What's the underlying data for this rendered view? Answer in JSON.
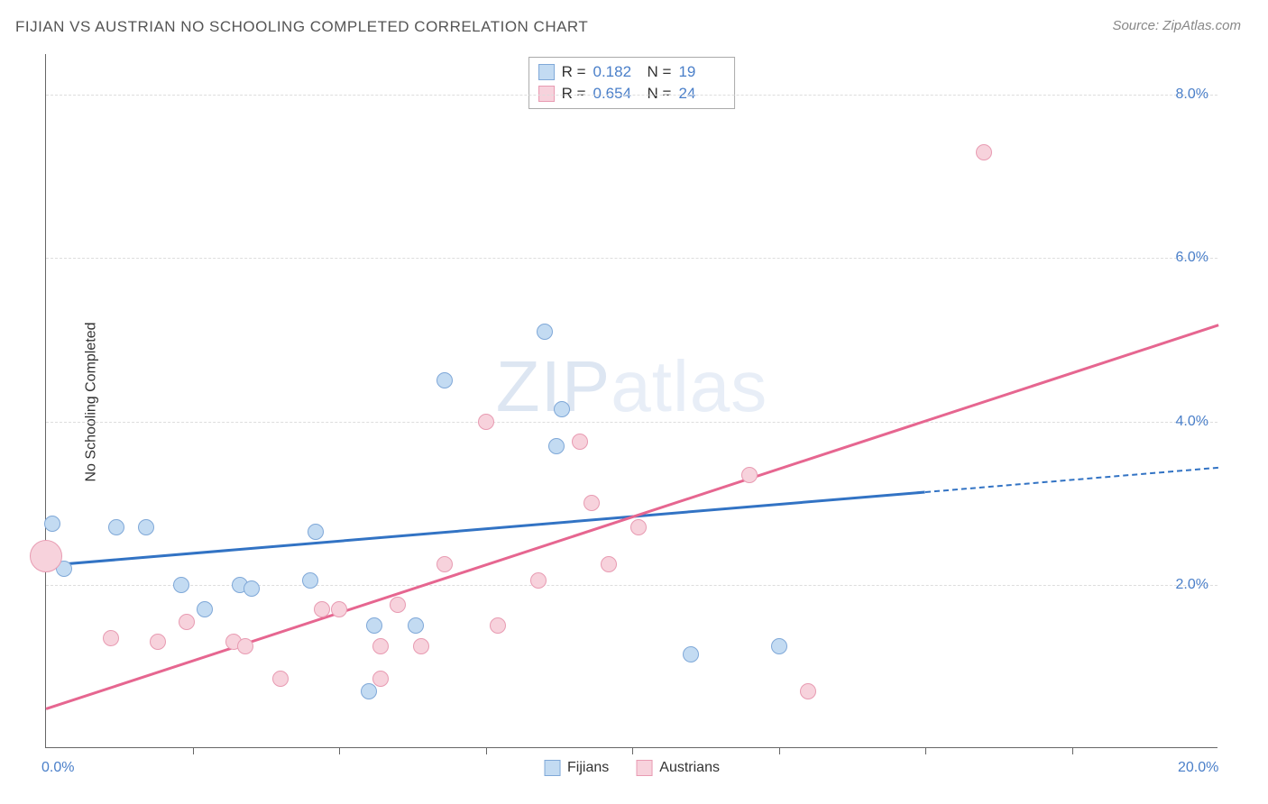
{
  "title": "FIJIAN VS AUSTRIAN NO SCHOOLING COMPLETED CORRELATION CHART",
  "source": "Source: ZipAtlas.com",
  "y_axis_label": "No Schooling Completed",
  "watermark": {
    "bold": "ZIP",
    "light": "atlas"
  },
  "chart": {
    "type": "scatter",
    "xlim": [
      0,
      20
    ],
    "ylim": [
      0,
      8.5
    ],
    "x_tick_labels": [
      {
        "pos": 0,
        "label": "0.0%"
      },
      {
        "pos": 20,
        "label": "20.0%"
      }
    ],
    "x_tick_positions": [
      2.5,
      5,
      7.5,
      10,
      12.5,
      15,
      17.5
    ],
    "y_ticks": [
      {
        "pos": 2,
        "label": "2.0%"
      },
      {
        "pos": 4,
        "label": "4.0%"
      },
      {
        "pos": 6,
        "label": "6.0%"
      },
      {
        "pos": 8,
        "label": "8.0%"
      }
    ],
    "background_color": "#ffffff",
    "grid_color": "#dddddd",
    "series": [
      {
        "name": "Fijians",
        "fill": "#c3dbf2",
        "stroke": "#7fa8d8",
        "trend_color": "#3273c4",
        "R": "0.182",
        "N": "19",
        "radius": 9,
        "trend": {
          "x1": 0,
          "y1": 2.25,
          "x2": 15,
          "y2": 3.15,
          "dashed_to_x": 20,
          "dashed_to_y": 3.45
        },
        "points": [
          {
            "x": 0.1,
            "y": 2.75
          },
          {
            "x": 0.3,
            "y": 2.2
          },
          {
            "x": 1.2,
            "y": 2.7
          },
          {
            "x": 1.7,
            "y": 2.7
          },
          {
            "x": 2.3,
            "y": 2.0
          },
          {
            "x": 2.7,
            "y": 1.7
          },
          {
            "x": 3.3,
            "y": 2.0
          },
          {
            "x": 3.5,
            "y": 1.95
          },
          {
            "x": 4.5,
            "y": 2.05
          },
          {
            "x": 4.6,
            "y": 2.65
          },
          {
            "x": 5.5,
            "y": 0.7
          },
          {
            "x": 5.6,
            "y": 1.5
          },
          {
            "x": 6.3,
            "y": 1.5
          },
          {
            "x": 6.8,
            "y": 4.5
          },
          {
            "x": 8.5,
            "y": 5.1
          },
          {
            "x": 8.7,
            "y": 3.7
          },
          {
            "x": 8.8,
            "y": 4.15
          },
          {
            "x": 11.0,
            "y": 1.15
          },
          {
            "x": 12.5,
            "y": 1.25
          }
        ]
      },
      {
        "name": "Austrians",
        "fill": "#f7d2dc",
        "stroke": "#e89bb2",
        "trend_color": "#e66690",
        "R": "0.654",
        "N": "24",
        "radius": 9,
        "trend": {
          "x1": 0,
          "y1": 0.5,
          "x2": 20,
          "y2": 5.2
        },
        "points": [
          {
            "x": 0.0,
            "y": 2.35,
            "r": 18
          },
          {
            "x": 1.1,
            "y": 1.35
          },
          {
            "x": 1.9,
            "y": 1.3
          },
          {
            "x": 2.4,
            "y": 1.55
          },
          {
            "x": 3.2,
            "y": 1.3
          },
          {
            "x": 3.4,
            "y": 1.25
          },
          {
            "x": 4.0,
            "y": 0.85
          },
          {
            "x": 4.7,
            "y": 1.7
          },
          {
            "x": 5.0,
            "y": 1.7
          },
          {
            "x": 5.7,
            "y": 0.85
          },
          {
            "x": 5.7,
            "y": 1.25
          },
          {
            "x": 6.0,
            "y": 1.75
          },
          {
            "x": 6.4,
            "y": 1.25
          },
          {
            "x": 6.8,
            "y": 2.25
          },
          {
            "x": 7.5,
            "y": 4.0
          },
          {
            "x": 7.7,
            "y": 1.5
          },
          {
            "x": 8.4,
            "y": 2.05
          },
          {
            "x": 9.1,
            "y": 3.75
          },
          {
            "x": 9.3,
            "y": 3.0
          },
          {
            "x": 9.6,
            "y": 2.25
          },
          {
            "x": 10.1,
            "y": 2.7
          },
          {
            "x": 12.0,
            "y": 3.35
          },
          {
            "x": 13.0,
            "y": 0.7
          },
          {
            "x": 16.0,
            "y": 7.3
          }
        ]
      }
    ]
  },
  "legend": {
    "item1": "Fijians",
    "item2": "Austrians"
  }
}
